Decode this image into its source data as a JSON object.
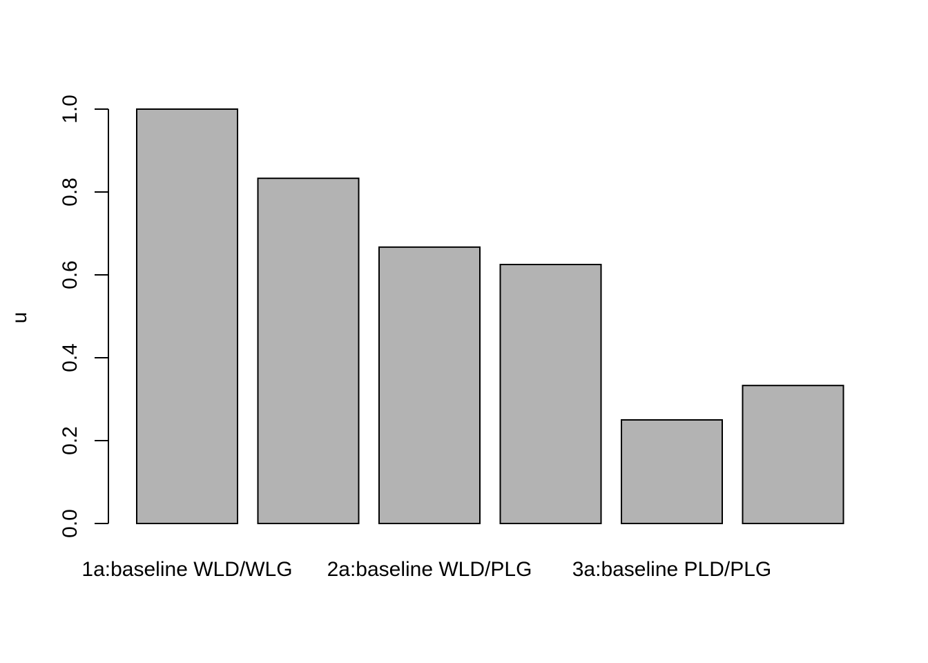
{
  "chart_data": {
    "type": "bar",
    "title": "",
    "xlabel": "",
    "ylabel": "u",
    "ylim": [
      0,
      1.0
    ],
    "yticks": [
      "0.0",
      "0.2",
      "0.4",
      "0.6",
      "0.8",
      "1.0"
    ],
    "categories": [
      "1a:baseline WLD/WLG",
      "",
      "2a:baseline WLD/PLG",
      "",
      "3a:baseline PLD/PLG",
      ""
    ],
    "values": [
      1.0,
      0.833,
      0.667,
      0.625,
      0.25,
      0.333
    ],
    "grid": false,
    "legend": false
  },
  "colors": {
    "bar_fill": "#b3b3b3",
    "bar_stroke": "#000000",
    "axis": "#000000",
    "background": "#ffffff"
  }
}
